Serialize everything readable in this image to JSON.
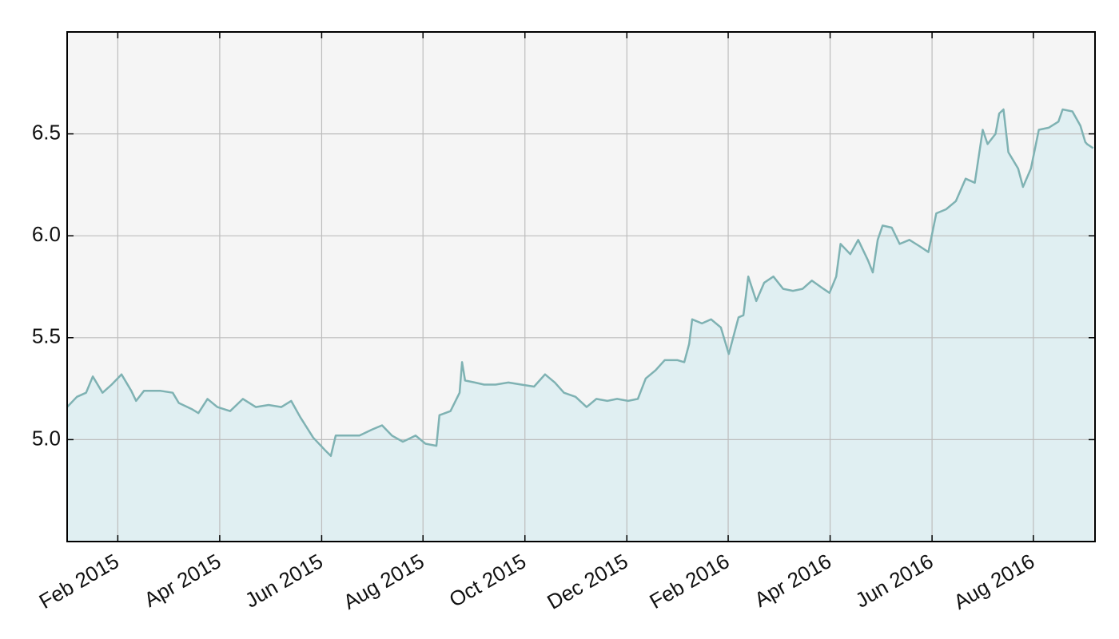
{
  "chart_data": {
    "type": "area",
    "x": [
      2015.0,
      2015.016,
      2015.031,
      2015.042,
      2015.058,
      2015.073,
      2015.089,
      2015.105,
      2015.113,
      2015.126,
      2015.152,
      2015.173,
      2015.183,
      2015.204,
      2015.215,
      2015.23,
      2015.246,
      2015.267,
      2015.288,
      2015.309,
      2015.33,
      2015.351,
      2015.367,
      2015.382,
      2015.403,
      2015.422,
      2015.432,
      2015.44,
      2015.458,
      2015.479,
      2015.5,
      2015.516,
      2015.532,
      2015.55,
      2015.571,
      2015.587,
      2015.605,
      2015.61,
      2015.628,
      2015.643,
      2015.647,
      2015.652,
      2015.668,
      2015.683,
      2015.702,
      2015.723,
      2015.744,
      2015.765,
      2015.783,
      2015.799,
      2015.814,
      2015.833,
      2015.851,
      2015.867,
      2015.885,
      2015.901,
      2015.919,
      2015.935,
      2015.948,
      2015.964,
      2015.979,
      2016.0,
      2016.011,
      2016.019,
      2016.024,
      2016.04,
      2016.055,
      2016.071,
      2016.084,
      2016.1,
      2016.108,
      2016.116,
      2016.129,
      2016.142,
      2016.157,
      2016.173,
      2016.189,
      2016.205,
      2016.22,
      2016.239,
      2016.249,
      2016.26,
      2016.267,
      2016.283,
      2016.296,
      2016.312,
      2016.32,
      2016.328,
      2016.336,
      2016.351,
      2016.364,
      2016.38,
      2016.396,
      2016.411,
      2016.424,
      2016.44,
      2016.456,
      2016.472,
      2016.487,
      2016.5,
      2016.508,
      2016.521,
      2016.527,
      2016.534,
      2016.542,
      2016.558,
      2016.566,
      2016.579,
      2016.592,
      2016.608,
      2016.624,
      2016.631,
      2016.647,
      2016.66,
      2016.668,
      2016.671,
      2016.681
    ],
    "values": [
      5.16,
      5.21,
      5.23,
      5.31,
      5.23,
      5.27,
      5.32,
      5.24,
      5.19,
      5.24,
      5.24,
      5.23,
      5.18,
      5.15,
      5.13,
      5.2,
      5.16,
      5.14,
      5.2,
      5.16,
      5.17,
      5.16,
      5.19,
      5.11,
      5.01,
      4.95,
      4.92,
      5.02,
      5.02,
      5.02,
      5.05,
      5.07,
      5.02,
      4.99,
      5.02,
      4.98,
      4.97,
      5.12,
      5.14,
      5.23,
      5.38,
      5.29,
      5.28,
      5.27,
      5.27,
      5.28,
      5.27,
      5.26,
      5.32,
      5.28,
      5.23,
      5.21,
      5.16,
      5.2,
      5.19,
      5.2,
      5.19,
      5.2,
      5.3,
      5.34,
      5.39,
      5.39,
      5.38,
      5.47,
      5.59,
      5.57,
      5.59,
      5.55,
      5.42,
      5.6,
      5.61,
      5.8,
      5.68,
      5.77,
      5.8,
      5.74,
      5.73,
      5.74,
      5.78,
      5.74,
      5.72,
      5.8,
      5.96,
      5.91,
      5.98,
      5.88,
      5.82,
      5.98,
      6.05,
      6.04,
      5.96,
      5.98,
      5.95,
      5.92,
      6.11,
      6.13,
      6.17,
      6.28,
      6.26,
      6.52,
      6.45,
      6.5,
      6.6,
      6.62,
      6.41,
      6.33,
      6.24,
      6.33,
      6.52,
      6.53,
      6.56,
      6.62,
      6.61,
      6.54,
      6.46,
      6.45,
      6.43
    ],
    "color": "#7fb2b3",
    "fill_color": "#e0eff2",
    "xlim": [
      2015.0,
      2016.684
    ],
    "xticks": [
      {
        "value": 2015.083,
        "label": "Feb 2015"
      },
      {
        "value": 2015.25,
        "label": "Apr 2015"
      },
      {
        "value": 2015.417,
        "label": "Jun 2015"
      },
      {
        "value": 2015.583,
        "label": "Aug 2015"
      },
      {
        "value": 2015.75,
        "label": "Oct 2015"
      },
      {
        "value": 2015.917,
        "label": "Dec 2015"
      },
      {
        "value": 2016.083,
        "label": "Feb 2016"
      },
      {
        "value": 2016.25,
        "label": "Apr 2016"
      },
      {
        "value": 2016.417,
        "label": "Jun 2016"
      },
      {
        "value": 2016.583,
        "label": "Aug 2016"
      }
    ],
    "ylim": [
      4.5,
      7.0
    ],
    "yticks": [
      {
        "value": 5,
        "label": "5.0"
      },
      5.5,
      {
        "value": 6,
        "label": "6.0"
      },
      6.5
    ],
    "grid": true
  }
}
